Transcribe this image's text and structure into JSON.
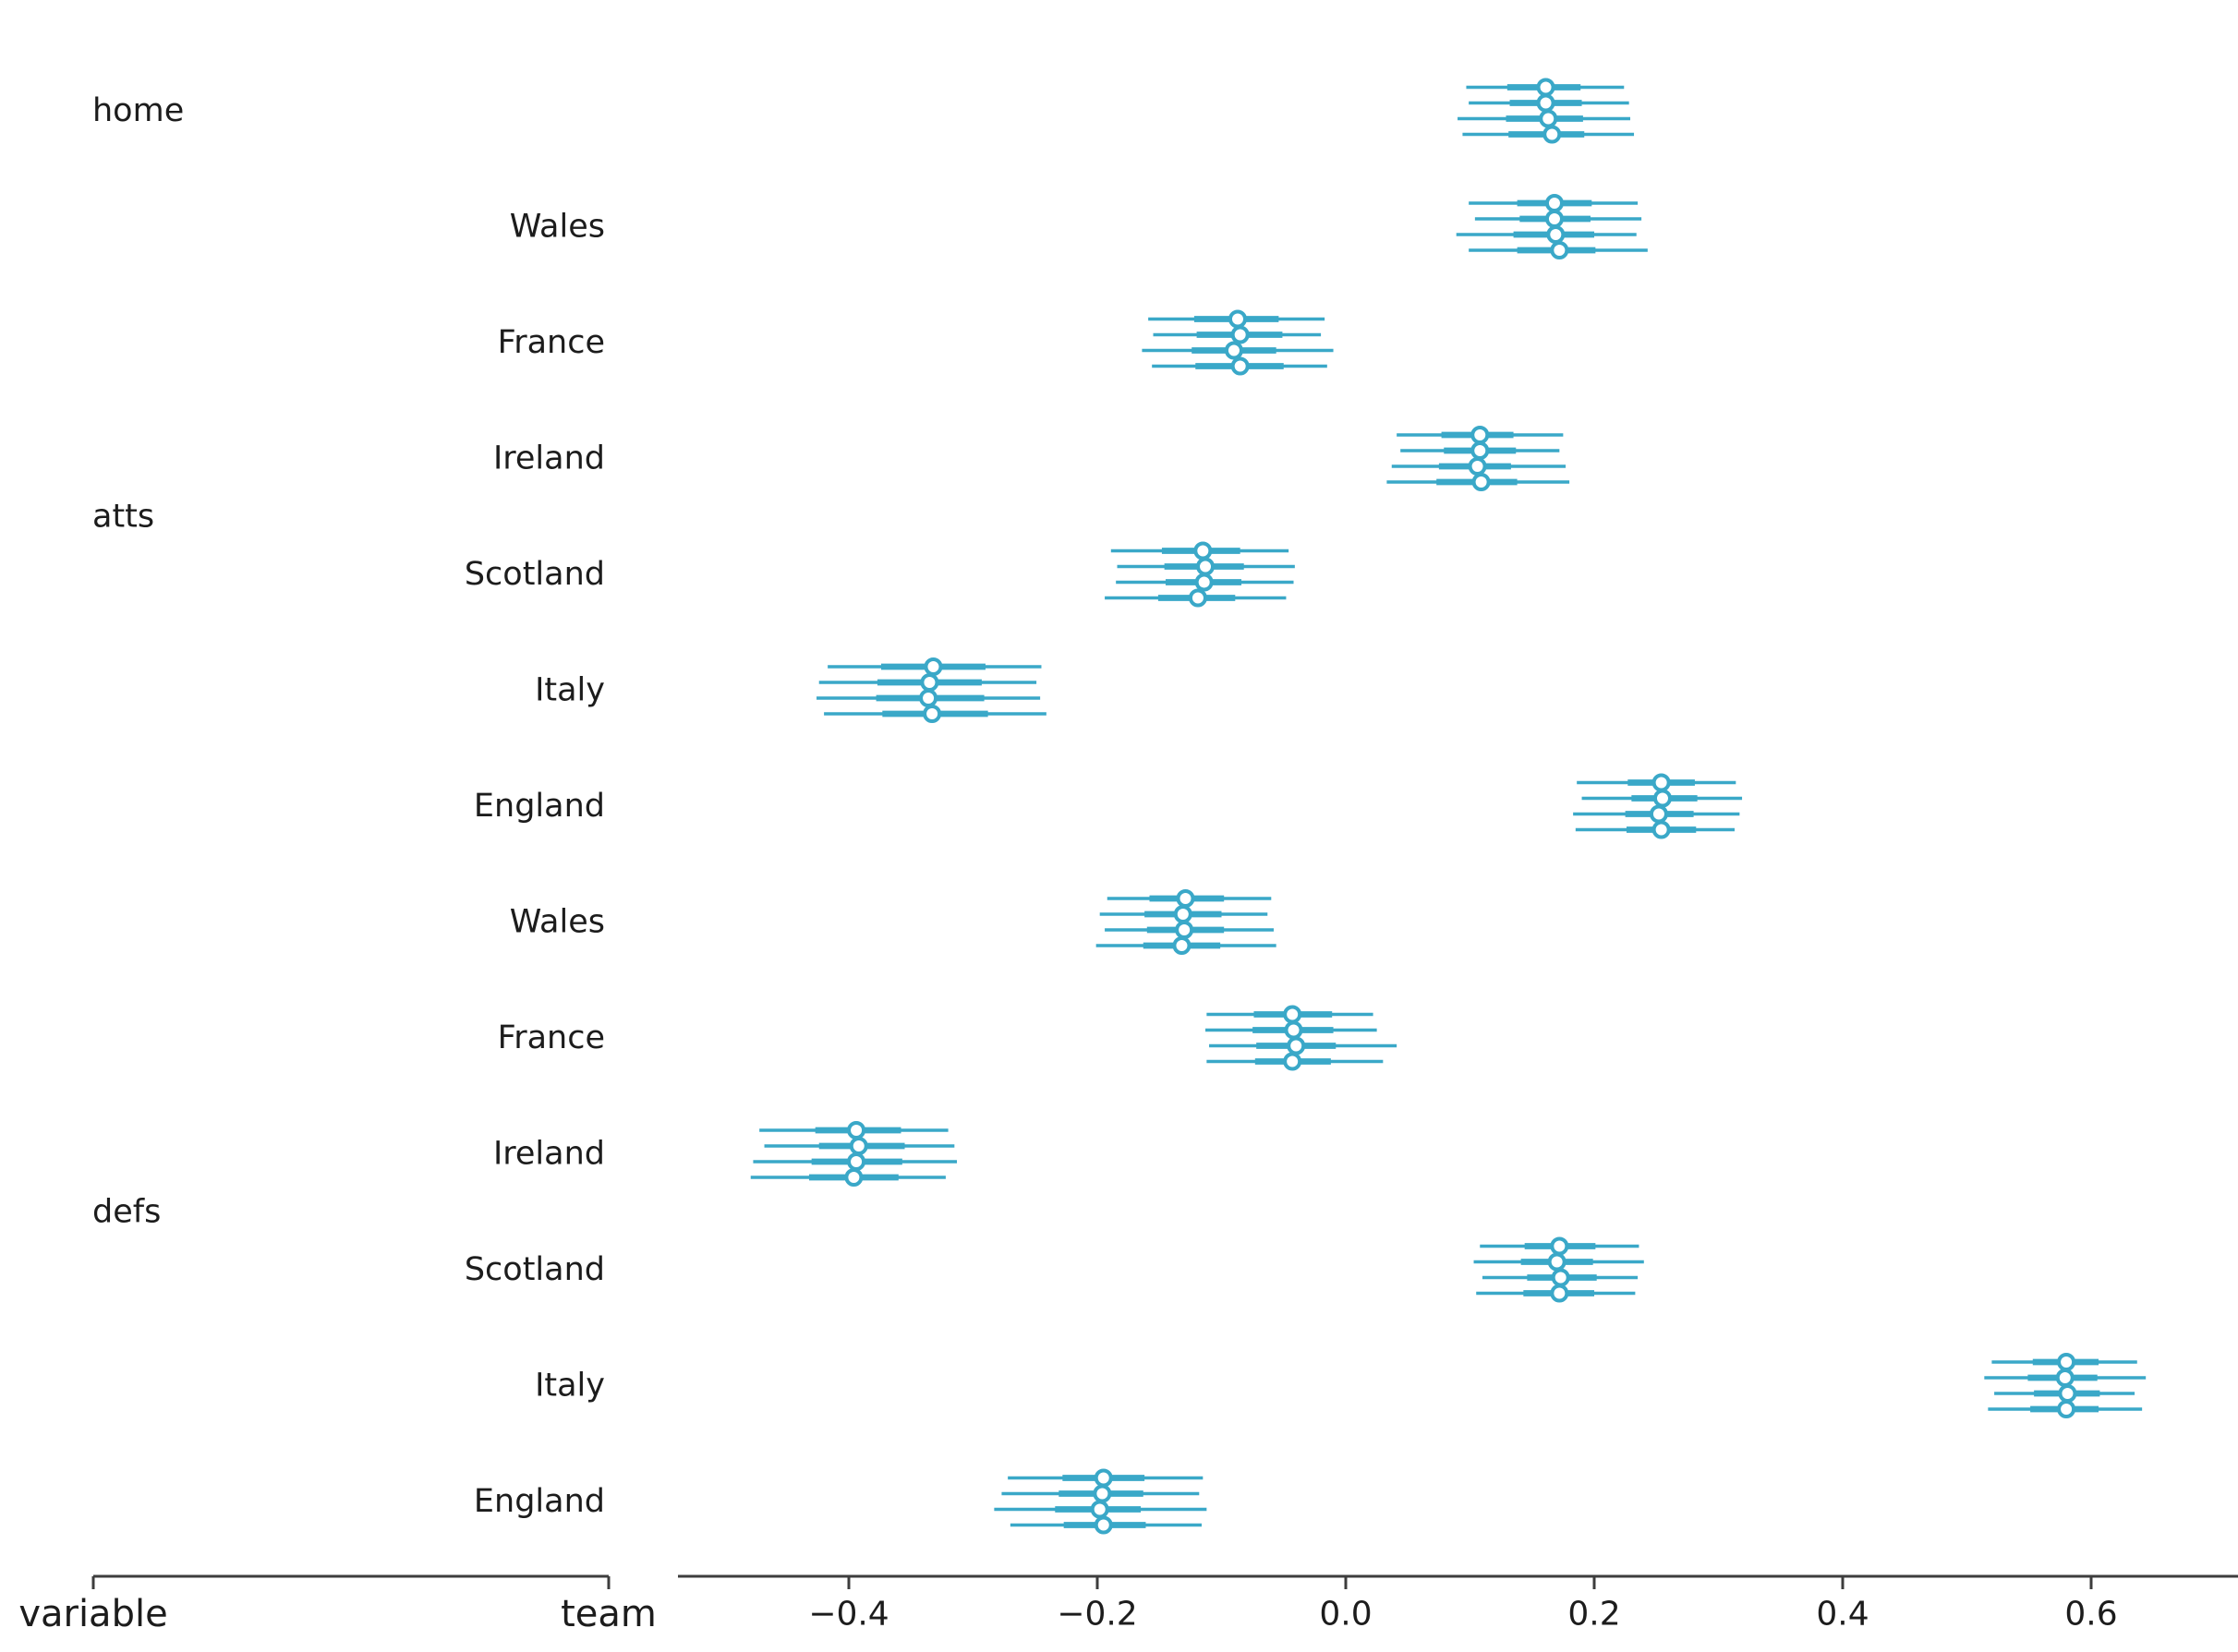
{
  "figure": {
    "background": "#ffffff",
    "marker_color": "#3AA8C8",
    "axis_color": "#3d3d3d",
    "text_color": "#1c1c1c"
  },
  "axis": {
    "left_labels": {
      "variable": "variable",
      "team": "team"
    }
  },
  "chart_data": {
    "type": "forest",
    "title": "",
    "xlabel": "",
    "note": "ArviZ-style forest plot: 4 chains per row, thin line = wide credible interval, thick line = interquartile range, open circle = median. Chain values are [ci_low, q25, median, q75, ci_high].",
    "x_range": [
      -0.54,
      0.72
    ],
    "x_ticks": [
      -0.4,
      -0.2,
      0.0,
      0.2,
      0.4,
      0.6
    ],
    "x_tick_labels": [
      "−0.4",
      "−0.2",
      "0.0",
      "0.2",
      "0.4",
      "0.6"
    ],
    "legend_position": "none",
    "grid": false,
    "groups": [
      {
        "variable": "home",
        "rows": [
          {
            "team": "",
            "median": 0.16,
            "chains": [
              [
                0.097,
                0.13,
                0.161,
                0.189,
                0.224
              ],
              [
                0.099,
                0.132,
                0.161,
                0.19,
                0.228
              ],
              [
                0.09,
                0.129,
                0.163,
                0.191,
                0.229
              ],
              [
                0.094,
                0.131,
                0.166,
                0.192,
                0.232
              ]
            ]
          }
        ]
      },
      {
        "variable": "atts",
        "rows": [
          {
            "team": "Wales",
            "median": 0.17,
            "chains": [
              [
                0.099,
                0.138,
                0.168,
                0.198,
                0.235
              ],
              [
                0.104,
                0.14,
                0.168,
                0.197,
                0.238
              ],
              [
                0.089,
                0.135,
                0.169,
                0.2,
                0.234
              ],
              [
                0.099,
                0.138,
                0.172,
                0.201,
                0.243
              ]
            ]
          },
          {
            "team": "France",
            "median": -0.09,
            "chains": [
              [
                -0.159,
                -0.122,
                -0.087,
                -0.054,
                -0.017
              ],
              [
                -0.155,
                -0.12,
                -0.085,
                -0.051,
                -0.02
              ],
              [
                -0.164,
                -0.124,
                -0.09,
                -0.056,
                -0.01
              ],
              [
                -0.156,
                -0.121,
                -0.085,
                -0.05,
                -0.015
              ]
            ]
          },
          {
            "team": "Ireland",
            "median": 0.11,
            "chains": [
              [
                0.041,
                0.077,
                0.108,
                0.135,
                0.175
              ],
              [
                0.044,
                0.079,
                0.108,
                0.137,
                0.172
              ],
              [
                0.037,
                0.075,
                0.106,
                0.133,
                0.177
              ],
              [
                0.033,
                0.073,
                0.109,
                0.138,
                0.18
              ]
            ]
          },
          {
            "team": "Scotland",
            "median": -0.12,
            "chains": [
              [
                -0.189,
                -0.148,
                -0.115,
                -0.085,
                -0.046
              ],
              [
                -0.184,
                -0.146,
                -0.113,
                -0.082,
                -0.041
              ],
              [
                -0.185,
                -0.145,
                -0.114,
                -0.084,
                -0.042
              ],
              [
                -0.194,
                -0.151,
                -0.119,
                -0.089,
                -0.048
              ]
            ]
          },
          {
            "team": "Italy",
            "median": -0.33,
            "chains": [
              [
                -0.417,
                -0.374,
                -0.332,
                -0.29,
                -0.245
              ],
              [
                -0.424,
                -0.377,
                -0.335,
                -0.293,
                -0.249
              ],
              [
                -0.426,
                -0.378,
                -0.336,
                -0.291,
                -0.246
              ],
              [
                -0.42,
                -0.373,
                -0.333,
                -0.288,
                -0.241
              ]
            ]
          },
          {
            "team": "England",
            "median": 0.25,
            "chains": [
              [
                0.186,
                0.227,
                0.254,
                0.281,
                0.314
              ],
              [
                0.19,
                0.23,
                0.255,
                0.283,
                0.319
              ],
              [
                0.183,
                0.225,
                0.252,
                0.28,
                0.317
              ],
              [
                0.185,
                0.226,
                0.254,
                0.282,
                0.313
              ]
            ]
          }
        ]
      },
      {
        "variable": "defs",
        "rows": [
          {
            "team": "Wales",
            "median": -0.13,
            "chains": [
              [
                -0.192,
                -0.158,
                -0.129,
                -0.098,
                -0.06
              ],
              [
                -0.198,
                -0.162,
                -0.131,
                -0.1,
                -0.063
              ],
              [
                -0.194,
                -0.16,
                -0.13,
                -0.098,
                -0.058
              ],
              [
                -0.201,
                -0.163,
                -0.132,
                -0.101,
                -0.056
              ]
            ]
          },
          {
            "team": "France",
            "median": -0.04,
            "chains": [
              [
                -0.112,
                -0.074,
                -0.043,
                -0.011,
                0.022
              ],
              [
                -0.113,
                -0.075,
                -0.042,
                -0.01,
                0.025
              ],
              [
                -0.11,
                -0.072,
                -0.04,
                -0.008,
                0.041
              ],
              [
                -0.112,
                -0.073,
                -0.043,
                -0.012,
                0.03
              ]
            ]
          },
          {
            "team": "Ireland",
            "median": -0.39,
            "chains": [
              [
                -0.472,
                -0.427,
                -0.394,
                -0.358,
                -0.32
              ],
              [
                -0.468,
                -0.424,
                -0.392,
                -0.355,
                -0.315
              ],
              [
                -0.477,
                -0.43,
                -0.394,
                -0.357,
                -0.313
              ],
              [
                -0.479,
                -0.432,
                -0.396,
                -0.36,
                -0.322
              ]
            ]
          },
          {
            "team": "Scotland",
            "median": 0.17,
            "chains": [
              [
                0.108,
                0.144,
                0.172,
                0.201,
                0.236
              ],
              [
                0.103,
                0.141,
                0.17,
                0.199,
                0.24
              ],
              [
                0.11,
                0.146,
                0.173,
                0.202,
                0.235
              ],
              [
                0.105,
                0.143,
                0.172,
                0.2,
                0.233
              ]
            ]
          },
          {
            "team": "Italy",
            "median": 0.58,
            "chains": [
              [
                0.52,
                0.553,
                0.58,
                0.606,
                0.637
              ],
              [
                0.514,
                0.549,
                0.579,
                0.605,
                0.644
              ],
              [
                0.522,
                0.554,
                0.581,
                0.607,
                0.635
              ],
              [
                0.517,
                0.551,
                0.58,
                0.606,
                0.641
              ]
            ]
          },
          {
            "team": "England",
            "median": -0.2,
            "chains": [
              [
                -0.272,
                -0.228,
                -0.195,
                -0.162,
                -0.115
              ],
              [
                -0.277,
                -0.231,
                -0.196,
                -0.163,
                -0.118
              ],
              [
                -0.283,
                -0.234,
                -0.198,
                -0.165,
                -0.112
              ],
              [
                -0.27,
                -0.227,
                -0.195,
                -0.161,
                -0.116
              ]
            ]
          }
        ]
      }
    ]
  }
}
